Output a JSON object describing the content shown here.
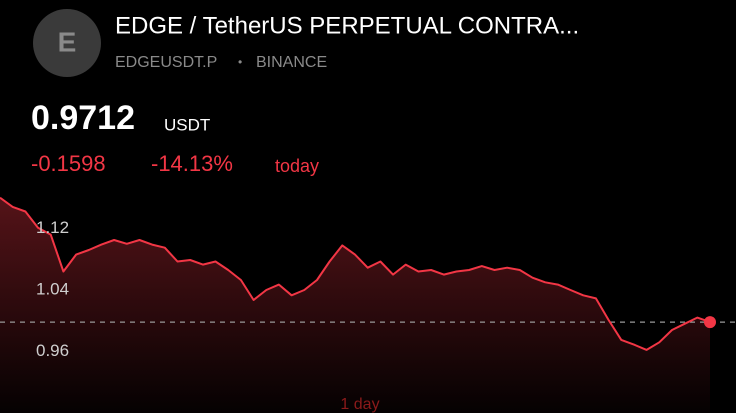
{
  "header": {
    "icon_letter": "E",
    "title": "EDGE / TetherUS PERPETUAL CONTRA...",
    "symbol": "EDGEUSDT.P",
    "separator": "•",
    "exchange": "BINANCE",
    "price": "0.9712",
    "currency": "USDT",
    "change": "-0.1598",
    "change_percent": "-14.13%",
    "period": "today"
  },
  "chart_data": {
    "type": "line",
    "color": "#f23645",
    "values": [
      1.133,
      1.121,
      1.115,
      1.094,
      1.085,
      1.037,
      1.059,
      1.065,
      1.072,
      1.078,
      1.073,
      1.078,
      1.072,
      1.068,
      1.05,
      1.052,
      1.046,
      1.05,
      1.039,
      1.026,
      1.0,
      1.013,
      1.02,
      1.006,
      1.013,
      1.026,
      1.05,
      1.071,
      1.059,
      1.042,
      1.05,
      1.033,
      1.046,
      1.037,
      1.039,
      1.033,
      1.037,
      1.039,
      1.044,
      1.039,
      1.042,
      1.039,
      1.029,
      1.023,
      1.02,
      1.013,
      1.006,
      1.002,
      0.974,
      0.948,
      0.942,
      0.935,
      0.945,
      0.961,
      0.969,
      0.977,
      0.9712
    ],
    "ylim": [
      0.853,
      1.143
    ],
    "yticks": [
      1.12,
      1.04,
      0.96
    ],
    "x_label": "1 day"
  }
}
